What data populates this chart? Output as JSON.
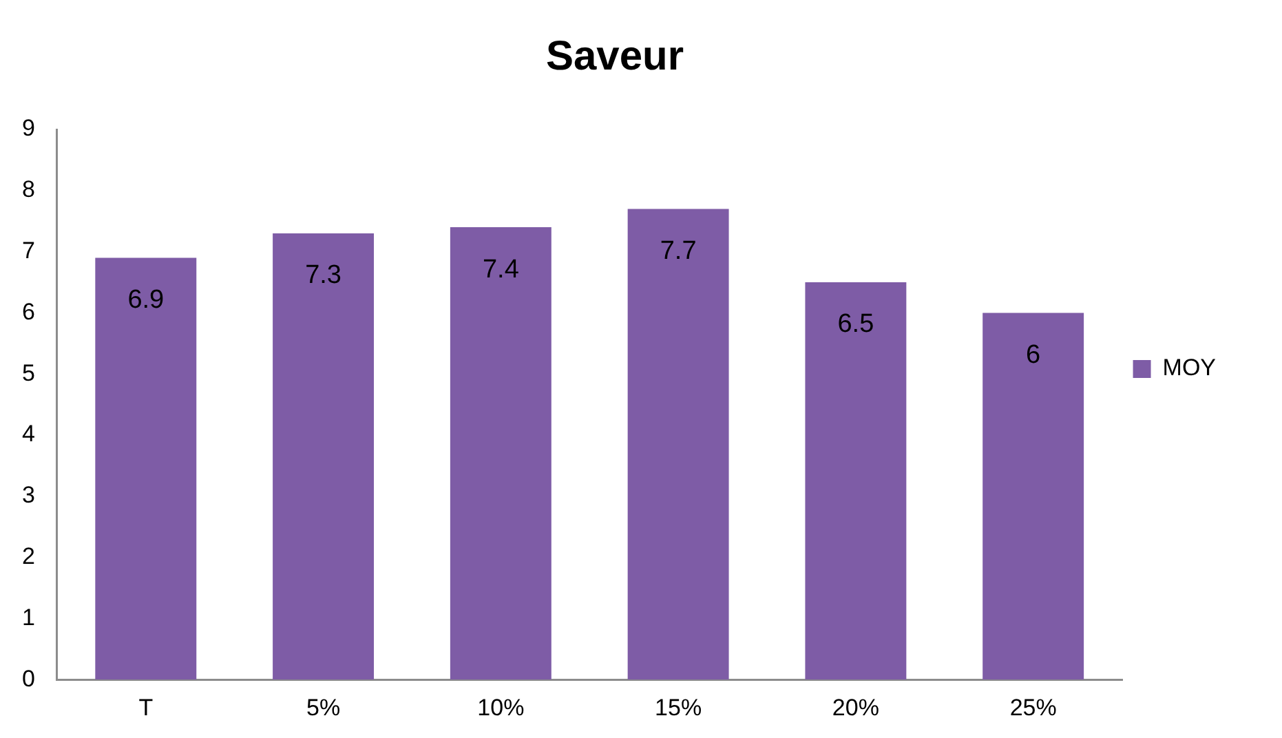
{
  "chart_data": {
    "type": "bar",
    "title": "Saveur",
    "categories": [
      "T",
      "5%",
      "10%",
      "15%",
      "20%",
      "25%"
    ],
    "series": [
      {
        "name": "MOY",
        "color": "#7e5ca6",
        "values": [
          6.9,
          7.3,
          7.4,
          7.7,
          6.5,
          6
        ]
      }
    ],
    "ylim": [
      0,
      9
    ],
    "yticks": [
      0,
      1,
      2,
      3,
      4,
      5,
      6,
      7,
      8,
      9
    ],
    "legend": "right",
    "data_labels": true
  }
}
